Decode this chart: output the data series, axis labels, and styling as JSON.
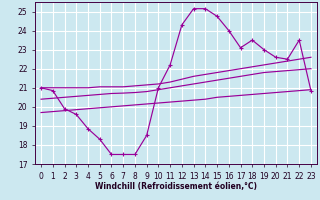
{
  "xlabel": "Windchill (Refroidissement éolien,°C)",
  "bg_color": "#cce8f0",
  "grid_color": "#ffffff",
  "line_color": "#990099",
  "x_values": [
    0,
    1,
    2,
    3,
    4,
    5,
    6,
    7,
    8,
    9,
    10,
    11,
    12,
    13,
    14,
    15,
    16,
    17,
    18,
    19,
    20,
    21,
    22,
    23
  ],
  "y_main": [
    21.0,
    20.85,
    19.9,
    19.6,
    18.85,
    18.3,
    17.5,
    17.5,
    17.5,
    18.5,
    21.0,
    22.2,
    24.3,
    25.15,
    25.15,
    24.75,
    24.0,
    23.1,
    23.5,
    23.0,
    22.6,
    22.5,
    23.5,
    20.85
  ],
  "y_upper1": [
    21.0,
    21.0,
    21.0,
    21.0,
    21.0,
    21.05,
    21.05,
    21.05,
    21.1,
    21.15,
    21.2,
    21.3,
    21.45,
    21.6,
    21.7,
    21.8,
    21.9,
    22.0,
    22.1,
    22.2,
    22.3,
    22.4,
    22.5,
    22.6
  ],
  "y_upper2": [
    20.4,
    20.45,
    20.5,
    20.55,
    20.6,
    20.65,
    20.7,
    20.72,
    20.75,
    20.8,
    20.9,
    21.0,
    21.1,
    21.2,
    21.3,
    21.4,
    21.5,
    21.6,
    21.7,
    21.8,
    21.85,
    21.9,
    21.95,
    22.0
  ],
  "y_lower": [
    19.7,
    19.75,
    19.8,
    19.85,
    19.9,
    19.95,
    20.0,
    20.05,
    20.1,
    20.15,
    20.2,
    20.25,
    20.3,
    20.35,
    20.4,
    20.5,
    20.55,
    20.6,
    20.65,
    20.7,
    20.75,
    20.8,
    20.85,
    20.9
  ],
  "ylim": [
    17,
    25.5
  ],
  "yticks": [
    17,
    18,
    19,
    20,
    21,
    22,
    23,
    24,
    25
  ],
  "xticks": [
    0,
    1,
    2,
    3,
    4,
    5,
    6,
    7,
    8,
    9,
    10,
    11,
    12,
    13,
    14,
    15,
    16,
    17,
    18,
    19,
    20,
    21,
    22,
    23
  ],
  "tick_fontsize": 5.5,
  "xlabel_fontsize": 5.5
}
